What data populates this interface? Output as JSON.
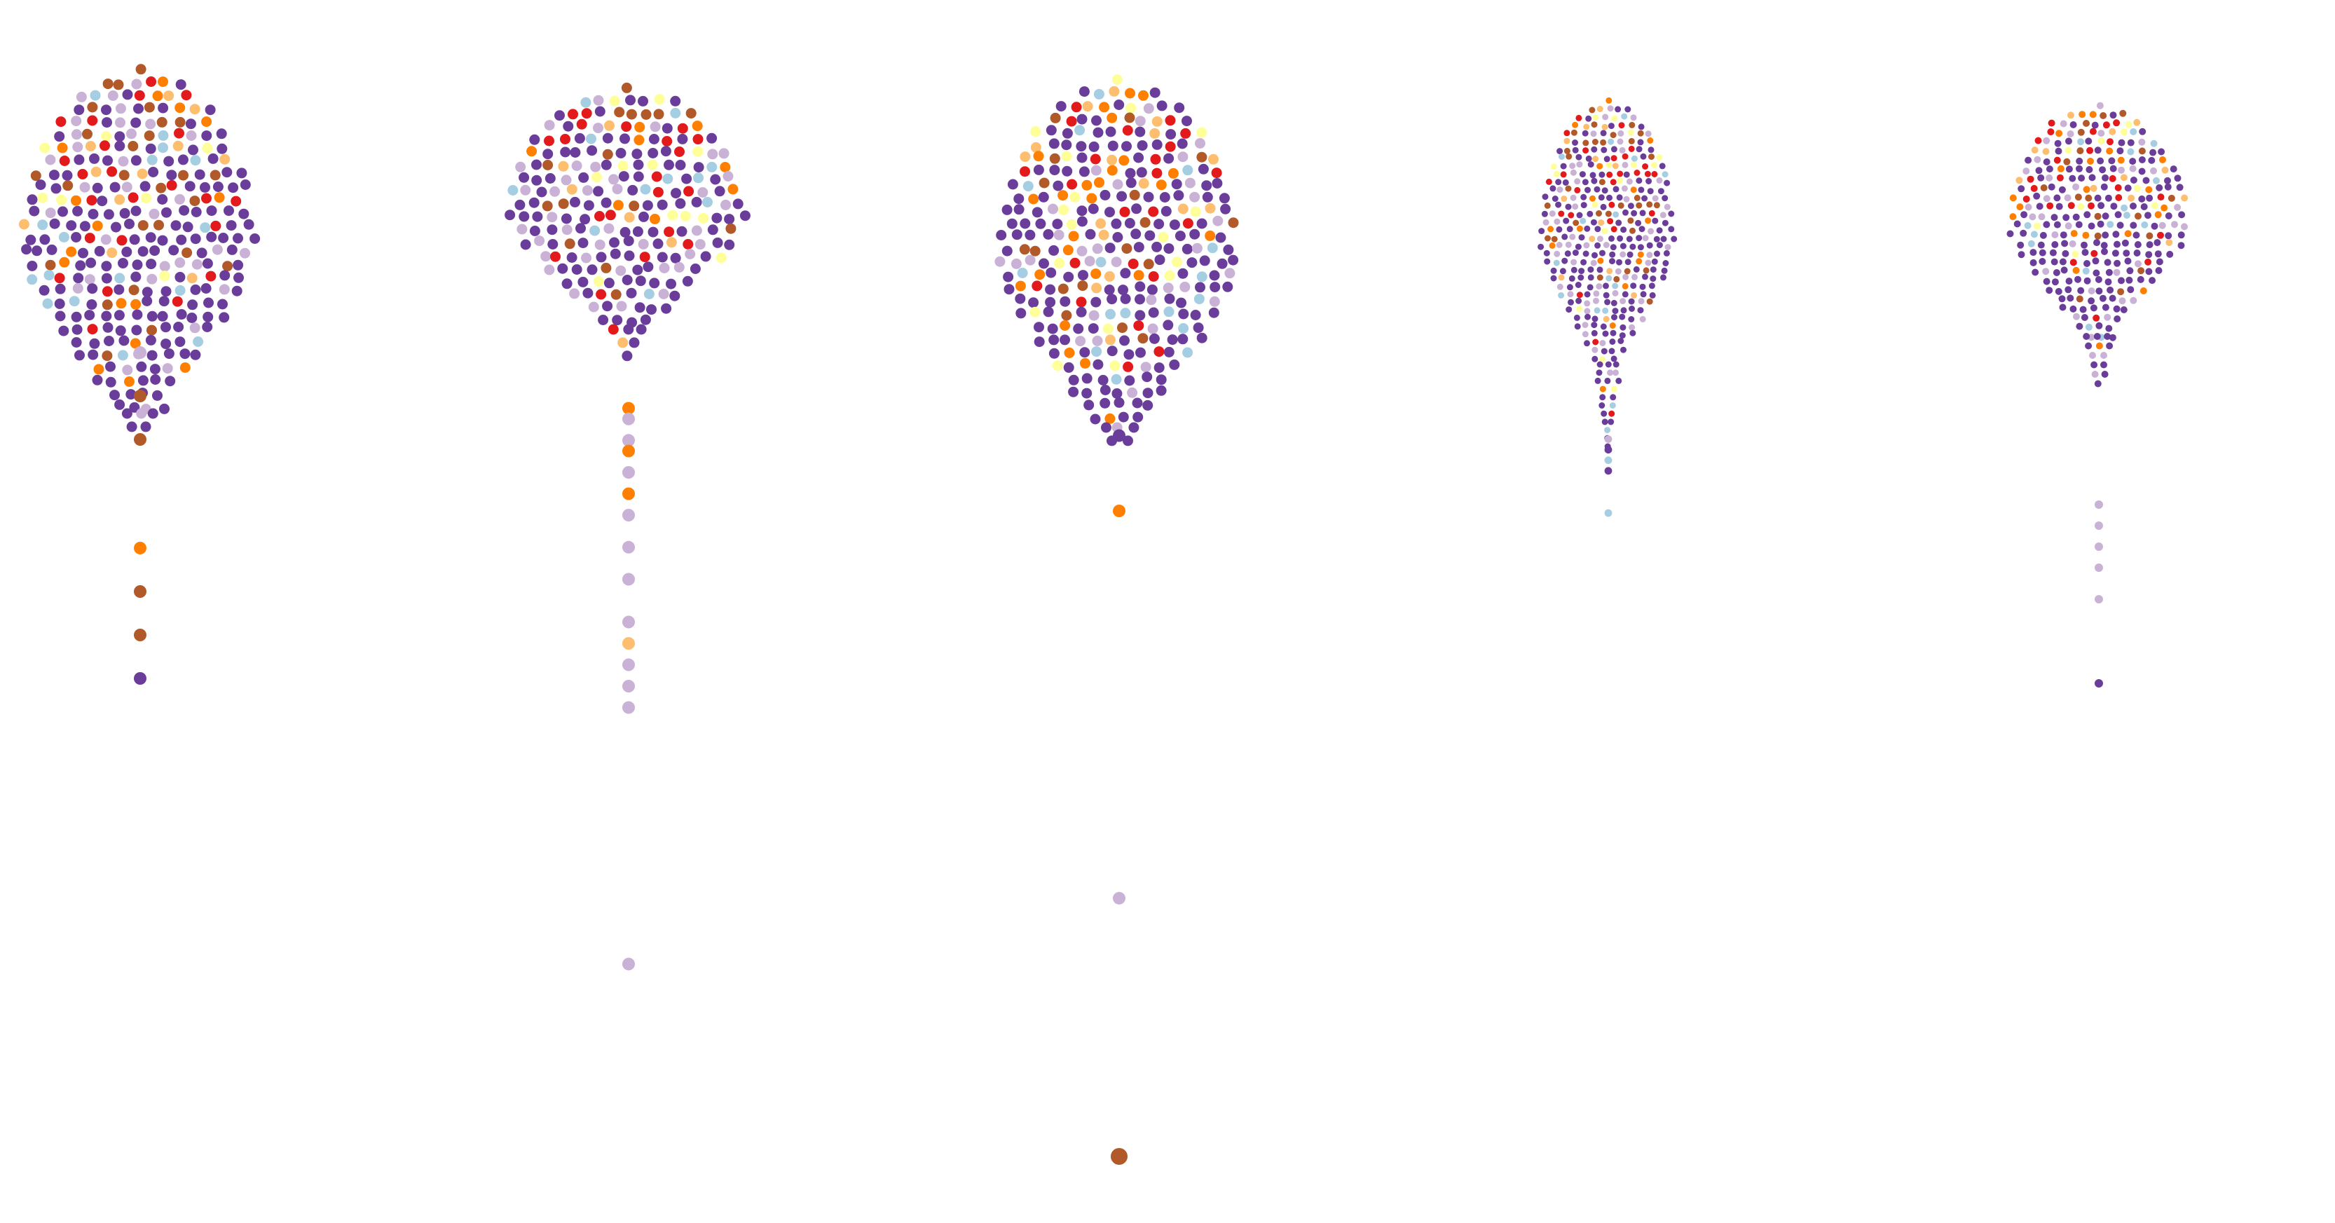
{
  "chart_data": {
    "type": "scatter",
    "title": "",
    "xlabel": "",
    "ylabel": "",
    "colors": {
      "dark_purple": "#6a3d9a",
      "light_purple": "#cab2d6",
      "red": "#e31a1c",
      "brown": "#b15928",
      "orange": "#ff7f00",
      "light_orange": "#fdbf6f",
      "light_blue": "#a6cee3",
      "pale_yellow": "#ffff99"
    },
    "panels": [
      {
        "mix": {
          "dark_purple": 0.58,
          "light_purple": 0.12,
          "red": 0.08,
          "brown": 0.06,
          "orange": 0.05,
          "light_orange": 0.04,
          "light_blue": 0.04,
          "pale_yellow": 0.03
        },
        "outliers": [
          {
            "t": 0.26,
            "color": "light_purple"
          },
          {
            "t": 0.3,
            "color": "brown"
          },
          {
            "t": 0.34,
            "color": "brown"
          },
          {
            "t": 0.44,
            "color": "orange"
          },
          {
            "t": 0.48,
            "color": "brown"
          },
          {
            "t": 0.52,
            "color": "brown"
          },
          {
            "t": 0.56,
            "color": "dark_purple"
          }
        ]
      },
      {
        "mix": {
          "dark_purple": 0.52,
          "light_purple": 0.16,
          "red": 0.08,
          "brown": 0.07,
          "orange": 0.05,
          "light_orange": 0.04,
          "light_blue": 0.04,
          "pale_yellow": 0.04
        },
        "outliers": [
          {
            "t": 0.3,
            "color": "orange"
          },
          {
            "t": 0.31,
            "color": "light_purple"
          },
          {
            "t": 0.33,
            "color": "light_purple"
          },
          {
            "t": 0.34,
            "color": "orange"
          },
          {
            "t": 0.36,
            "color": "light_purple"
          },
          {
            "t": 0.38,
            "color": "orange"
          },
          {
            "t": 0.4,
            "color": "light_purple"
          },
          {
            "t": 0.43,
            "color": "light_purple"
          },
          {
            "t": 0.46,
            "color": "light_purple"
          },
          {
            "t": 0.5,
            "color": "light_purple"
          },
          {
            "t": 0.52,
            "color": "light_orange"
          },
          {
            "t": 0.54,
            "color": "light_purple"
          },
          {
            "t": 0.56,
            "color": "light_purple"
          },
          {
            "t": 0.58,
            "color": "light_purple"
          },
          {
            "t": 0.82,
            "color": "light_purple"
          }
        ]
      },
      {
        "mix": {
          "dark_purple": 0.55,
          "light_purple": 0.12,
          "red": 0.07,
          "brown": 0.06,
          "orange": 0.06,
          "light_orange": 0.05,
          "light_blue": 0.05,
          "pale_yellow": 0.04
        },
        "outliers": [
          {
            "t": 0.33,
            "color": "dark_purple"
          },
          {
            "t": 0.4,
            "color": "orange"
          },
          {
            "t": 0.76,
            "color": "light_purple"
          },
          {
            "t": 1.0,
            "color": "brown"
          }
        ]
      },
      {
        "mix": {
          "dark_purple": 0.55,
          "light_purple": 0.15,
          "red": 0.07,
          "brown": 0.07,
          "orange": 0.05,
          "light_orange": 0.04,
          "light_blue": 0.04,
          "pale_yellow": 0.03
        },
        "outliers": [
          {
            "t": 0.32,
            "color": "light_purple"
          },
          {
            "t": 0.33,
            "color": "dark_purple"
          },
          {
            "t": 0.34,
            "color": "light_blue"
          },
          {
            "t": 0.35,
            "color": "dark_purple"
          },
          {
            "t": 0.39,
            "color": "light_blue"
          }
        ]
      },
      {
        "mix": {
          "dark_purple": 0.56,
          "light_purple": 0.14,
          "red": 0.08,
          "brown": 0.06,
          "orange": 0.05,
          "light_orange": 0.04,
          "light_blue": 0.04,
          "pale_yellow": 0.03
        },
        "outliers": [
          {
            "t": 0.38,
            "color": "light_purple"
          },
          {
            "t": 0.4,
            "color": "light_purple"
          },
          {
            "t": 0.42,
            "color": "light_purple"
          },
          {
            "t": 0.44,
            "color": "light_purple"
          },
          {
            "t": 0.47,
            "color": "light_purple"
          },
          {
            "t": 0.55,
            "color": "dark_purple"
          }
        ]
      }
    ]
  }
}
